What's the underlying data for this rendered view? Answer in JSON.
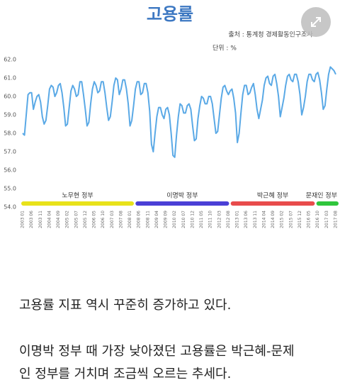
{
  "chart_data": {
    "type": "line",
    "title": "고용률",
    "source": "출처 : 통계청 경제활동인구조사",
    "unit": "단위 : %",
    "categories": [
      "2003 01",
      null,
      null,
      null,
      null,
      "2003 06",
      null,
      null,
      null,
      null,
      "2003 11",
      null,
      null,
      null,
      null,
      "2004 04",
      null,
      null,
      null,
      null,
      "2004 09",
      null,
      null,
      null,
      null,
      "2005 02",
      null,
      null,
      null,
      null,
      "2005 07",
      null,
      null,
      null,
      null,
      "2005 12",
      null,
      null,
      null,
      null,
      "2006 05",
      null,
      null,
      null,
      null,
      "2006 10",
      null,
      null,
      null,
      null,
      "2007 03",
      null,
      null,
      null,
      null,
      "2007 08",
      null,
      null,
      null,
      null,
      "2008 01",
      null,
      null,
      null,
      null,
      "2008 06",
      null,
      null,
      null,
      null,
      "2008 11",
      null,
      null,
      null,
      null,
      "2009 04",
      null,
      null,
      null,
      null,
      "2009 09",
      null,
      null,
      null,
      null,
      "2010 02",
      null,
      null,
      null,
      null,
      "2010 07",
      null,
      null,
      null,
      null,
      "2010 12",
      null,
      null,
      null,
      null,
      "2011 05",
      null,
      null,
      null,
      null,
      "2011 10",
      null,
      null,
      null,
      null,
      "2012 03",
      null,
      null,
      null,
      null,
      "2012 08",
      null,
      null,
      null,
      null,
      "2013 01",
      null,
      null,
      null,
      null,
      "2013 06",
      null,
      null,
      null,
      null,
      "2013 11",
      null,
      null,
      null,
      null,
      "2014 04",
      null,
      null,
      null,
      null,
      "2014 09",
      null,
      null,
      null,
      null,
      "2015 02",
      null,
      null,
      null,
      null,
      "2015 07",
      null,
      null,
      null,
      null,
      "2015 12",
      null,
      null,
      null,
      null,
      "2016 05",
      null,
      null,
      null,
      null,
      "2016 10",
      null,
      null,
      null,
      null,
      "2017 03",
      null,
      null,
      null,
      null,
      "2017 08"
    ],
    "values": [
      58.0,
      57.9,
      59.0,
      60.1,
      60.2,
      60.2,
      59.3,
      59.7,
      60.0,
      60.1,
      59.7,
      58.9,
      58.5,
      58.7,
      59.5,
      60.4,
      60.6,
      60.5,
      60.0,
      60.2,
      60.6,
      60.7,
      60.2,
      59.4,
      58.4,
      58.5,
      59.4,
      60.3,
      60.6,
      60.4,
      60.0,
      60.1,
      60.8,
      60.8,
      60.1,
      59.3,
      58.4,
      58.6,
      59.6,
      60.4,
      60.8,
      60.6,
      60.2,
      60.3,
      60.8,
      60.8,
      60.2,
      59.4,
      58.7,
      58.9,
      59.7,
      60.6,
      61.0,
      60.9,
      60.1,
      60.4,
      60.9,
      60.9,
      60.4,
      59.6,
      58.4,
      58.7,
      59.5,
      60.4,
      60.8,
      60.8,
      60.1,
      60.2,
      60.7,
      60.7,
      60.2,
      59.2,
      57.4,
      57.0,
      58.0,
      58.9,
      59.4,
      59.4,
      59.0,
      58.8,
      59.3,
      59.4,
      59.0,
      58.0,
      56.8,
      56.7,
      57.9,
      58.9,
      59.6,
      59.5,
      59.1,
      59.1,
      59.5,
      59.6,
      59.3,
      58.4,
      57.6,
      57.7,
      58.8,
      59.5,
      60.0,
      59.9,
      59.6,
      59.6,
      60.0,
      60.0,
      59.6,
      58.8,
      58.0,
      58.1,
      59.0,
      59.9,
      60.5,
      60.6,
      60.3,
      60.1,
      60.3,
      60.4,
      59.9,
      59.1,
      57.5,
      58.0,
      59.1,
      60.1,
      60.6,
      60.6,
      60.1,
      60.2,
      60.5,
      60.7,
      60.1,
      59.3,
      58.8,
      59.3,
      59.8,
      60.6,
      61.0,
      61.1,
      60.7,
      60.6,
      61.1,
      61.2,
      60.7,
      60.0,
      58.9,
      59.4,
      59.9,
      60.6,
      61.1,
      61.2,
      60.9,
      60.8,
      61.2,
      61.2,
      60.8,
      60.1,
      59.0,
      59.4,
      60.0,
      60.8,
      61.2,
      61.2,
      60.9,
      60.8,
      61.2,
      61.3,
      60.9,
      60.2,
      59.3,
      59.5,
      60.4,
      61.2,
      61.6,
      61.5,
      61.4,
      61.2
    ],
    "color": "#5aa9e6",
    "ylim": [
      54,
      62
    ],
    "yticks": [
      {
        "value": 54,
        "label": "54.0"
      },
      {
        "value": 55,
        "label": "55.0"
      },
      {
        "value": 56,
        "label": "56.0"
      },
      {
        "value": 57,
        "label": "57.0"
      },
      {
        "value": 58,
        "label": "58.0"
      },
      {
        "value": 59,
        "label": "59.0"
      },
      {
        "value": 60,
        "label": "60.0"
      },
      {
        "value": 61,
        "label": "61.0"
      },
      {
        "value": 62,
        "label": "62.0"
      }
    ],
    "grid": false,
    "periods": [
      {
        "name": "노무현 정부",
        "color": "#e8e21a"
      },
      {
        "name": "이명박 정부",
        "color": "#4a3fd6"
      },
      {
        "name": "박근혜 정부",
        "color": "#e84b4b"
      },
      {
        "name": "문재인 정부",
        "color": "#2fc63c"
      }
    ]
  },
  "article": {
    "paragraph1": "고용률 지표 역시 꾸준히 증가하고 있다.",
    "paragraph2_lines": [
      "이명박 정부 때 가장 낮아졌던 고용률은 박근혜-문제",
      "인 정부를 거치며 조금씩 오르는 추세다."
    ]
  }
}
